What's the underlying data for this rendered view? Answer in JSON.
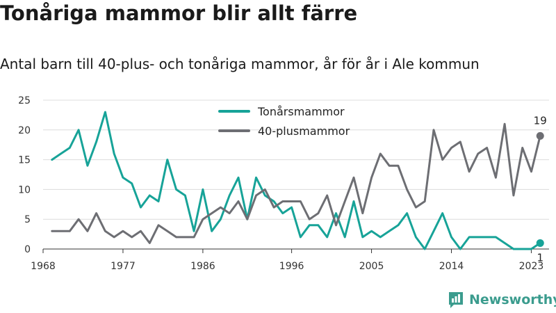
{
  "title": "Tonåriga mammor blir allt färre",
  "subtitle": "Antal barn till 40-plus- och tonåriga mammor, år för år i Ale kommun",
  "brand": "Newsworthy",
  "colors": {
    "teen": "#17a398",
    "forty": "#6d6e73",
    "grid": "#dcdcdc",
    "brand": "#3b9c8e"
  },
  "chart_data": {
    "type": "line",
    "x": [
      1969,
      1970,
      1971,
      1972,
      1973,
      1974,
      1975,
      1976,
      1977,
      1978,
      1979,
      1980,
      1981,
      1982,
      1983,
      1984,
      1985,
      1986,
      1987,
      1988,
      1989,
      1990,
      1991,
      1992,
      1993,
      1994,
      1995,
      1996,
      1997,
      1998,
      1999,
      2000,
      2001,
      2002,
      2003,
      2004,
      2005,
      2006,
      2007,
      2008,
      2009,
      2010,
      2011,
      2012,
      2013,
      2014,
      2015,
      2016,
      2017,
      2018,
      2019,
      2020,
      2021,
      2022,
      2023,
      2024
    ],
    "series": [
      {
        "name": "Tonårsmammor",
        "color": "#17a398",
        "values": [
          15,
          16,
          17,
          20,
          14,
          18,
          23,
          16,
          12,
          11,
          7,
          9,
          8,
          15,
          10,
          9,
          3,
          10,
          3,
          5,
          9,
          12,
          5,
          12,
          9,
          8,
          6,
          7,
          2,
          4,
          4,
          2,
          6,
          2,
          8,
          2,
          3,
          2,
          3,
          4,
          6,
          2,
          0,
          3,
          6,
          2,
          0,
          2,
          2,
          2,
          2,
          1,
          0,
          0,
          0,
          1
        ]
      },
      {
        "name": "40-plusmammor",
        "color": "#6d6e73",
        "values": [
          3,
          3,
          3,
          5,
          3,
          6,
          3,
          2,
          3,
          2,
          3,
          1,
          4,
          3,
          2,
          2,
          2,
          5,
          6,
          7,
          6,
          8,
          5,
          9,
          10,
          7,
          8,
          8,
          8,
          5,
          6,
          9,
          4,
          8,
          12,
          6,
          12,
          16,
          14,
          14,
          10,
          7,
          8,
          20,
          15,
          17,
          18,
          13,
          16,
          17,
          12,
          21,
          9,
          17,
          13,
          19
        ]
      }
    ],
    "xticks": [
      "1968",
      "1977",
      "1986",
      "1996",
      "2005",
      "2014",
      "2023"
    ],
    "xtick_values": [
      1968,
      1977,
      1986,
      1996,
      2005,
      2014,
      2023
    ],
    "yticks": [
      "0",
      "5",
      "10",
      "15",
      "20",
      "25"
    ],
    "ylim": [
      0,
      25
    ],
    "xlim": [
      1968,
      2025
    ],
    "grid": true,
    "legend": "top-center",
    "end_labels": [
      "1",
      "19"
    ]
  }
}
